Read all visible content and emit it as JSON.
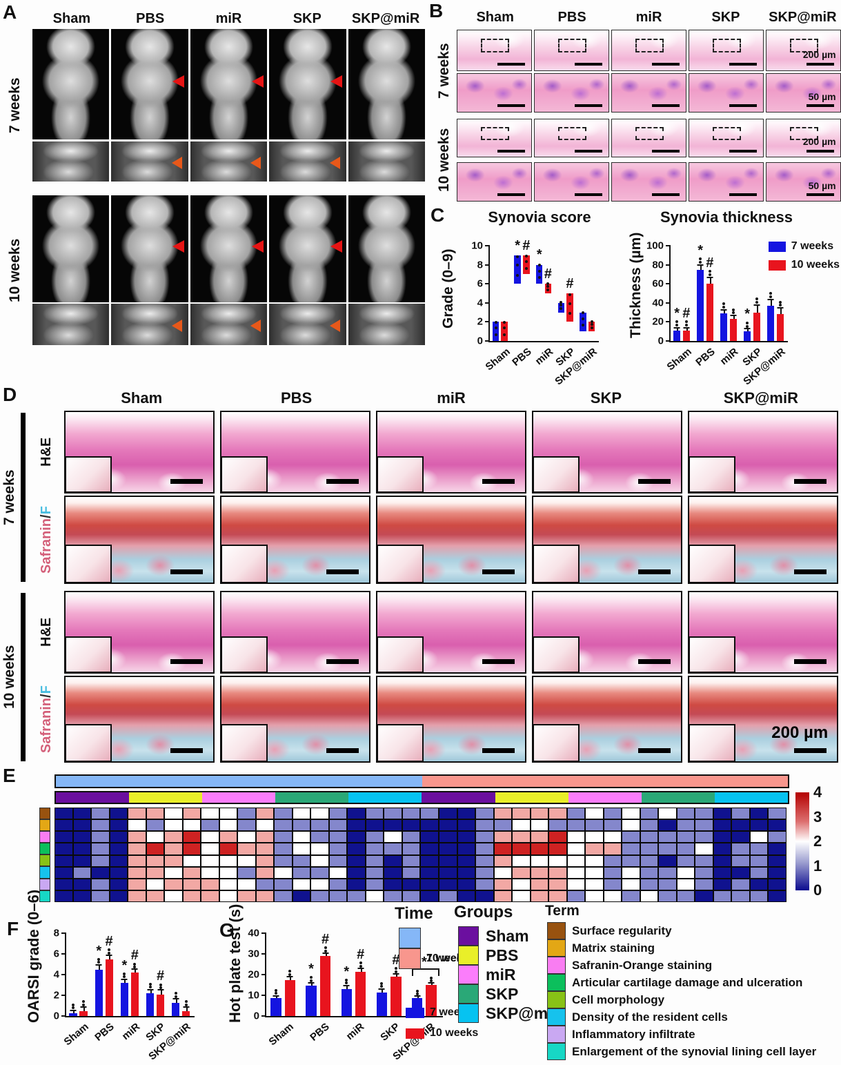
{
  "panelA": {
    "label": "A",
    "columns": [
      "Sham",
      "PBS",
      "miR",
      "SKP",
      "SKP@miR"
    ],
    "blocks": [
      {
        "time": "7 weeks",
        "rows": [
          {
            "kind": "render3d",
            "arrows": [
              0,
              1,
              1,
              1,
              0
            ]
          },
          {
            "kind": "ct",
            "arrows": [
              0,
              1,
              1,
              1,
              0
            ]
          }
        ]
      },
      {
        "time": "10 weeks",
        "rows": [
          {
            "kind": "render3d",
            "arrows": [
              0,
              1,
              1,
              1,
              0
            ]
          },
          {
            "kind": "ct",
            "arrows": [
              0,
              1,
              1,
              1,
              0
            ]
          }
        ]
      }
    ],
    "arrow_colors": {
      "render3d": "#e61414",
      "ct": "#e8581a"
    }
  },
  "panelB": {
    "label": "B",
    "columns": [
      "Sham",
      "PBS",
      "miR",
      "SKP",
      "SKP@miR"
    ],
    "blocks": [
      {
        "time": "7 weeks",
        "rows": [
          {
            "kind": "overview",
            "dashed": true,
            "scale": "200 µm"
          },
          {
            "kind": "detail",
            "dashed": false,
            "scale": "50 µm"
          }
        ]
      },
      {
        "time": "10 weeks",
        "rows": [
          {
            "kind": "overview",
            "dashed": true,
            "scale": "200 µm"
          },
          {
            "kind": "detail",
            "dashed": false,
            "scale": "50 µm"
          }
        ]
      }
    ]
  },
  "panelC": {
    "label": "C"
  },
  "panelD": {
    "label": "D",
    "columns": [
      "Sham",
      "PBS",
      "miR",
      "SKP",
      "SKP@miR"
    ],
    "blocks": [
      {
        "time": "7 weeks",
        "rows": [
          {
            "kind": "he",
            "stain": [
              {
                "text": "H&E",
                "color": "#111111"
              }
            ]
          },
          {
            "kind": "saf",
            "stain": [
              {
                "text": "Safranin",
                "color": "#d4607a"
              },
              {
                "text": "/",
                "color": "#333333"
              },
              {
                "text": "F",
                "color": "#49bde0"
              }
            ]
          }
        ]
      },
      {
        "time": "10 weeks",
        "rows": [
          {
            "kind": "he",
            "stain": [
              {
                "text": "H&E",
                "color": "#111111"
              }
            ]
          },
          {
            "kind": "saf",
            "stain": [
              {
                "text": "Safranin",
                "color": "#d4607a"
              },
              {
                "text": "/",
                "color": "#333333"
              },
              {
                "text": "F",
                "color": "#49bde0"
              }
            ]
          }
        ]
      }
    ],
    "scale_label": "200 µm"
  },
  "panelE": {
    "label": "E"
  },
  "panelF": {
    "label": "F"
  },
  "panelG": {
    "label": "G"
  },
  "heatmap": {
    "time_bar": [
      {
        "label": "7 weeks",
        "color": "#85b7f7",
        "span": 20
      },
      {
        "label": "10 weeks",
        "color": "#f8968d",
        "span": 20
      }
    ],
    "group_bar": [
      {
        "label": "Sham",
        "color": "#6b0f9f",
        "span": 4
      },
      {
        "label": "PBS",
        "color": "#e9ef29",
        "span": 4
      },
      {
        "label": "miR",
        "color": "#fb7dfb",
        "span": 4
      },
      {
        "label": "SKP",
        "color": "#2aa877",
        "span": 4
      },
      {
        "label": "SKP@miR",
        "color": "#06c3f1",
        "span": 4
      },
      {
        "label": "Sham",
        "color": "#6b0f9f",
        "span": 4
      },
      {
        "label": "PBS",
        "color": "#e9ef29",
        "span": 4
      },
      {
        "label": "miR",
        "color": "#fb7dfb",
        "span": 4
      },
      {
        "label": "SKP",
        "color": "#2aa877",
        "span": 4
      },
      {
        "label": "SKP@miR",
        "color": "#06c3f1",
        "span": 4
      }
    ],
    "row_colors": [
      "#98520f",
      "#e3a715",
      "#f97df2",
      "#0cbf5c",
      "#88c216",
      "#16c2ed",
      "#c9a8f2",
      "#17d7c5"
    ],
    "palette": {
      "0": "#10128f",
      "1": "#8487cc",
      "2": "#ffffff",
      "3": "#f2a8a4",
      "4": "#ce2222"
    },
    "colorbar_ticks": [
      "4",
      "3",
      "2",
      "1",
      "0"
    ],
    "matrix": [
      [
        0,
        0,
        1,
        0,
        3,
        3,
        2,
        3,
        2,
        2,
        1,
        3,
        1,
        2,
        2,
        1,
        0,
        1,
        1,
        1,
        1,
        0,
        0,
        1,
        3,
        3,
        3,
        3,
        1,
        2,
        1,
        2,
        1,
        2,
        1,
        1,
        0,
        1,
        0,
        1
      ],
      [
        0,
        0,
        1,
        0,
        2,
        1,
        2,
        2,
        1,
        2,
        1,
        2,
        1,
        1,
        1,
        1,
        0,
        0,
        0,
        0,
        0,
        0,
        0,
        1,
        1,
        2,
        2,
        1,
        1,
        1,
        1,
        2,
        1,
        0,
        1,
        1,
        0,
        0,
        0,
        0
      ],
      [
        0,
        0,
        1,
        0,
        3,
        2,
        3,
        4,
        2,
        3,
        2,
        3,
        1,
        2,
        1,
        1,
        0,
        1,
        2,
        1,
        0,
        0,
        0,
        1,
        3,
        3,
        3,
        4,
        2,
        2,
        2,
        1,
        1,
        1,
        1,
        1,
        0,
        0,
        2,
        1
      ],
      [
        0,
        0,
        1,
        0,
        3,
        4,
        3,
        4,
        2,
        4,
        3,
        3,
        1,
        2,
        2,
        1,
        0,
        1,
        1,
        1,
        0,
        0,
        0,
        1,
        4,
        4,
        4,
        4,
        2,
        3,
        3,
        1,
        1,
        1,
        1,
        2,
        0,
        1,
        1,
        0
      ],
      [
        0,
        0,
        1,
        0,
        3,
        3,
        3,
        2,
        2,
        2,
        2,
        3,
        1,
        1,
        2,
        1,
        0,
        1,
        0,
        1,
        0,
        0,
        0,
        1,
        3,
        2,
        2,
        2,
        2,
        2,
        1,
        1,
        1,
        0,
        1,
        1,
        0,
        1,
        1,
        0
      ],
      [
        0,
        1,
        0,
        0,
        3,
        3,
        2,
        3,
        2,
        2,
        1,
        3,
        2,
        1,
        1,
        2,
        0,
        1,
        0,
        1,
        0,
        0,
        0,
        1,
        2,
        3,
        3,
        3,
        2,
        2,
        1,
        2,
        1,
        1,
        2,
        1,
        0,
        0,
        1,
        0
      ],
      [
        0,
        0,
        1,
        0,
        3,
        2,
        3,
        3,
        3,
        2,
        2,
        1,
        1,
        2,
        2,
        1,
        0,
        1,
        0,
        0,
        0,
        0,
        0,
        1,
        3,
        2,
        3,
        3,
        2,
        2,
        1,
        2,
        1,
        1,
        2,
        1,
        0,
        1,
        0,
        0
      ],
      [
        0,
        0,
        1,
        0,
        3,
        3,
        2,
        3,
        3,
        2,
        3,
        3,
        1,
        0,
        1,
        1,
        1,
        2,
        1,
        1,
        0,
        1,
        0,
        0,
        3,
        2,
        3,
        3,
        1,
        2,
        2,
        1,
        2,
        1,
        1,
        0,
        1,
        1,
        1,
        0
      ]
    ]
  },
  "charts": {
    "score": {
      "type": "range_bar",
      "title": "Synovia score",
      "ylabel": "Grade (0–9)",
      "ylim": [
        0,
        10
      ],
      "yticks": [
        0,
        2,
        4,
        6,
        8,
        10
      ],
      "categories": [
        "Sham",
        "PBS",
        "miR",
        "SKP",
        "SKP@miR"
      ],
      "series": [
        {
          "name": "7 weeks",
          "color": "#1414e0",
          "ranges": [
            [
              0,
              2
            ],
            [
              6,
              9
            ],
            [
              6,
              8
            ],
            [
              3,
              4
            ],
            [
              1,
              3
            ]
          ],
          "annotations": [
            "",
            "*",
            "*",
            "",
            ""
          ]
        },
        {
          "name": "10 weeks",
          "color": "#e8141e",
          "ranges": [
            [
              0,
              2
            ],
            [
              7,
              9
            ],
            [
              5,
              6
            ],
            [
              2,
              5
            ],
            [
              1,
              2
            ]
          ],
          "annotations": [
            "",
            "#",
            "#",
            "#",
            ""
          ]
        }
      ]
    },
    "thickness": {
      "type": "grouped_bar",
      "title": "Synovia thickness",
      "ylabel": "Thickness (µm)",
      "ylim": [
        0,
        100
      ],
      "yticks": [
        0,
        20,
        40,
        60,
        80,
        100
      ],
      "categories": [
        "Sham",
        "PBS",
        "miR",
        "SKP",
        "SKP@miR"
      ],
      "legend": true,
      "series": [
        {
          "name": "7 weeks",
          "color": "#1414e0",
          "values": [
            11,
            75,
            29,
            10,
            37
          ],
          "errors": [
            2,
            4,
            3,
            2,
            6
          ],
          "annotations": [
            "*",
            "*",
            "",
            "*",
            ""
          ]
        },
        {
          "name": "10 weeks",
          "color": "#e8141e",
          "values": [
            11,
            60,
            23,
            30,
            28
          ],
          "errors": [
            2,
            6,
            3,
            7,
            6
          ],
          "annotations": [
            "#",
            "#",
            "",
            "",
            ""
          ]
        }
      ]
    },
    "oarsi": {
      "type": "grouped_bar",
      "title": "",
      "ylabel": "OARSI grade (0–6)",
      "ylim": [
        0,
        8
      ],
      "yticks": [
        0,
        2,
        4,
        6,
        8
      ],
      "categories": [
        "Sham",
        "PBS",
        "miR",
        "SKP",
        "SKP@miR"
      ],
      "series": [
        {
          "name": "7 weeks",
          "color": "#1414e0",
          "values": [
            0.3,
            4.5,
            3.2,
            2.2,
            1.3
          ],
          "errors": [
            0.2,
            0.4,
            0.3,
            0.3,
            0.3
          ],
          "annotations": [
            "",
            "*",
            "*",
            "",
            ""
          ]
        },
        {
          "name": "10 weeks",
          "color": "#e8141e",
          "values": [
            0.5,
            5.5,
            4.2,
            2.1,
            0.5
          ],
          "errors": [
            0.3,
            0.3,
            0.25,
            0.35,
            0.3
          ],
          "annotations": [
            "",
            "#",
            "#",
            "#",
            ""
          ]
        }
      ]
    },
    "hot_plate": {
      "type": "grouped_bar",
      "title": "",
      "ylabel": "Hot plate test (s)",
      "ylim": [
        0,
        40
      ],
      "yticks": [
        0,
        10,
        20,
        30,
        40
      ],
      "categories": [
        "Sham",
        "PBS",
        "miR",
        "SKP",
        "SKP@miR"
      ],
      "series": [
        {
          "name": "7 weeks",
          "color": "#1414e0",
          "values": [
            8.7,
            14.7,
            13,
            11.3,
            8.7
          ],
          "errors": [
            0.8,
            1,
            1.5,
            1.5,
            0.5
          ],
          "annotations": [
            "",
            "*",
            "*",
            "",
            ""
          ]
        },
        {
          "name": "10 weeks",
          "color": "#e8141e",
          "values": [
            17.5,
            29,
            21.5,
            19,
            15
          ],
          "errors": [
            1.2,
            1,
            1.2,
            1,
            0.6
          ],
          "annotations": [
            "",
            "#",
            "#",
            "#",
            ""
          ]
        }
      ],
      "bracket": {
        "index": 4,
        "y": 19.5,
        "label": "*"
      }
    }
  },
  "legends": {
    "time": {
      "title": "Time",
      "items": [
        {
          "label": "7 weeks",
          "color": "#85b7f7"
        },
        {
          "label": "10 weeks",
          "color": "#f8968d"
        }
      ]
    },
    "bars": {
      "items": [
        {
          "label": "7 weeks",
          "color": "#1414e0"
        },
        {
          "label": "10 weeks",
          "color": "#e8141e"
        }
      ]
    },
    "groups": {
      "title": "Groups",
      "items": [
        {
          "label": "Sham",
          "color": "#6b0f9f"
        },
        {
          "label": "PBS",
          "color": "#e9ef29"
        },
        {
          "label": "miR",
          "color": "#fb7dfb"
        },
        {
          "label": "SKP",
          "color": "#2aa877"
        },
        {
          "label": "SKP@miR",
          "color": "#06c3f1"
        }
      ]
    },
    "term": {
      "title": "Term",
      "items": [
        {
          "label": "Surface regularity",
          "color": "#98520f"
        },
        {
          "label": "Matrix staining",
          "color": "#e3a715"
        },
        {
          "label": "Safranin-Orange staining",
          "color": "#f97df2"
        },
        {
          "label": "Articular cartilage damage and ulceration",
          "color": "#0cbf5c"
        },
        {
          "label": "Cell morphology",
          "color": "#88c216"
        },
        {
          "label": "Density of the resident cells",
          "color": "#16c2ed"
        },
        {
          "label": "Inflammatory infiltrate",
          "color": "#c9a8f2"
        },
        {
          "label": "Enlargement of the synovial lining cell layer",
          "color": "#17d7c5"
        }
      ]
    }
  }
}
